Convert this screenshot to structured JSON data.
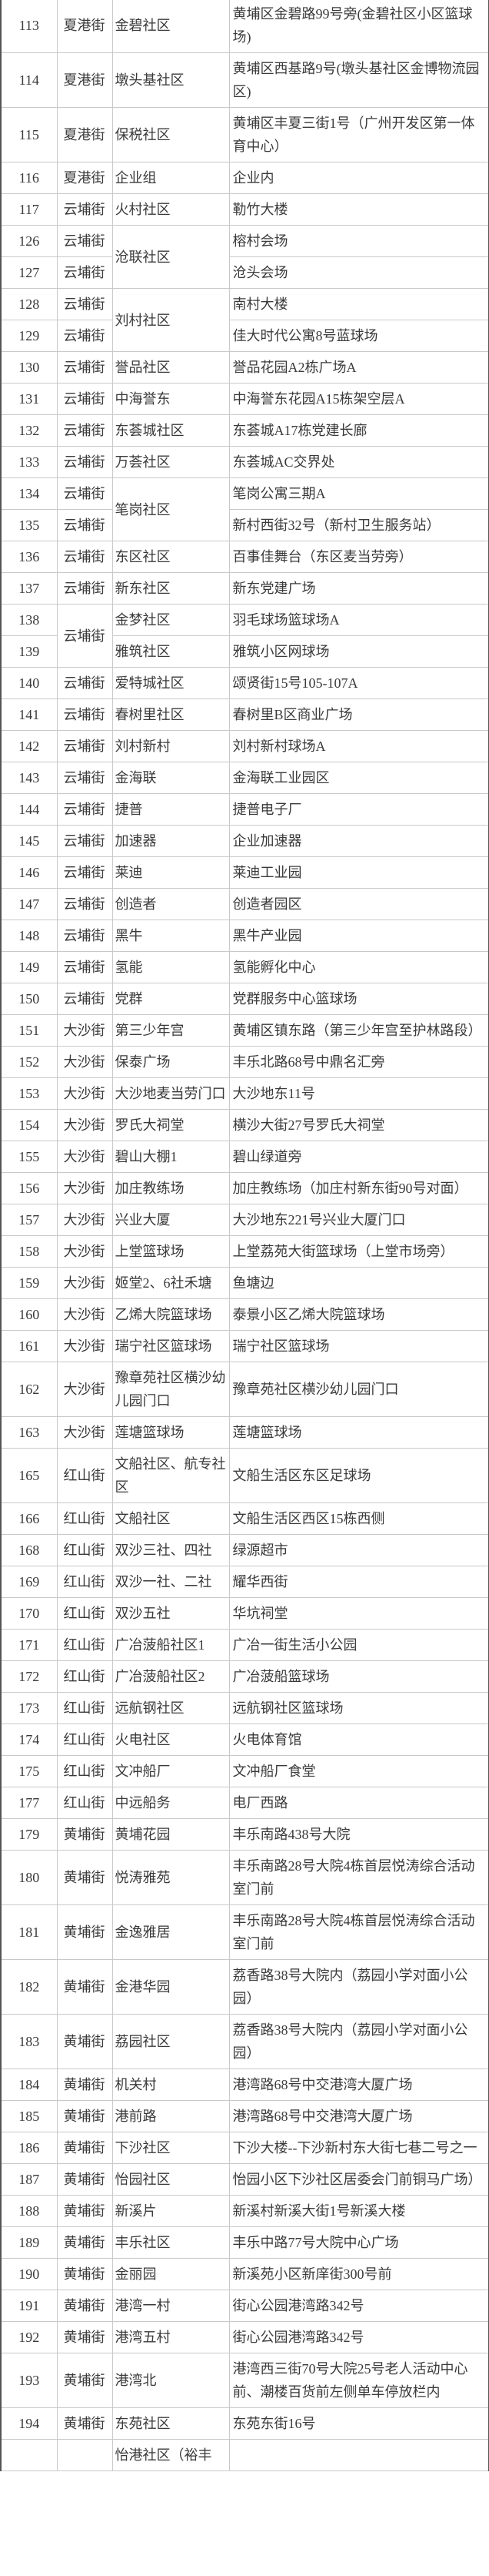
{
  "table": {
    "rows": [
      {
        "no": "113",
        "street": "夏港街",
        "community": "金碧社区",
        "address": "黄埔区金碧路99号旁(金碧社区小区篮球场)"
      },
      {
        "no": "114",
        "street": "夏港街",
        "community": "墩头基社区",
        "address": "黄埔区西基路9号(墩头基社区金博物流园区)"
      },
      {
        "no": "115",
        "street": "夏港街",
        "community": "保税社区",
        "address": "黄埔区丰夏三街1号（广州开发区第一体育中心）"
      },
      {
        "no": "116",
        "street": "夏港街",
        "community": "企业组",
        "address": "企业内"
      },
      {
        "no": "117",
        "street": "云埔街",
        "community": "火村社区",
        "address": "勒竹大楼"
      },
      {
        "no": "126",
        "street": "云埔街",
        "community": "沧联社区",
        "address": "榕村会场"
      },
      {
        "no": "127",
        "street": "云埔街",
        "community": null,
        "address": "沧头会场"
      },
      {
        "no": "128",
        "street": "云埔街",
        "community": "刘村社区",
        "address": "南村大楼"
      },
      {
        "no": "129",
        "street": "云埔街",
        "community": null,
        "address": "佳大时代公寓8号蓝球场"
      },
      {
        "no": "130",
        "street": "云埔街",
        "community": "誉品社区",
        "address": "誉品花园A2栋广场A"
      },
      {
        "no": "131",
        "street": "云埔街",
        "community": "中海誉东",
        "address": "中海誉东花园A15栋架空层A"
      },
      {
        "no": "132",
        "street": "云埔街",
        "community": "东荟城社区",
        "address": "东荟城A17栋党建长廊"
      },
      {
        "no": "133",
        "street": "云埔街",
        "community": "万荟社区",
        "address": "东荟城AC交界处"
      },
      {
        "no": "134",
        "street": "云埔街",
        "community": "笔岗社区",
        "address": "笔岗公寓三期A"
      },
      {
        "no": "135",
        "street": "云埔街",
        "community": null,
        "address": "新村西街32号（新村卫生服务站）"
      },
      {
        "no": "136",
        "street": "云埔街",
        "community": "东区社区",
        "address": "百事佳舞台（东区麦当劳旁）"
      },
      {
        "no": "137",
        "street": "云埔街",
        "community": "新东社区",
        "address": "新东党建广场"
      },
      {
        "no": "138",
        "street": "云埔街",
        "community": "金梦社区",
        "address": "羽毛球场篮球场A"
      },
      {
        "no": "139",
        "street": null,
        "community": "雅筑社区",
        "address": "雅筑小区网球场"
      },
      {
        "no": "140",
        "street": "云埔街",
        "community": "爱特城社区",
        "address": "颂贤街15号105-107A"
      },
      {
        "no": "141",
        "street": "云埔街",
        "community": "春树里社区",
        "address": "春树里B区商业广场"
      },
      {
        "no": "142",
        "street": "云埔街",
        "community": "刘村新村",
        "address": "刘村新村球场A"
      },
      {
        "no": "143",
        "street": "云埔街",
        "community": "金海联",
        "address": "金海联工业园区"
      },
      {
        "no": "144",
        "street": "云埔街",
        "community": "捷普",
        "address": "捷普电子厂"
      },
      {
        "no": "145",
        "street": "云埔街",
        "community": "加速器",
        "address": "企业加速器"
      },
      {
        "no": "146",
        "street": "云埔街",
        "community": "莱迪",
        "address": "莱迪工业园"
      },
      {
        "no": "147",
        "street": "云埔街",
        "community": "创造者",
        "address": "创造者园区"
      },
      {
        "no": "148",
        "street": "云埔街",
        "community": "黑牛",
        "address": "黑牛产业园"
      },
      {
        "no": "149",
        "street": "云埔街",
        "community": "氢能",
        "address": "氢能孵化中心"
      },
      {
        "no": "150",
        "street": "云埔街",
        "community": "党群",
        "address": "党群服务中心篮球场"
      },
      {
        "no": "151",
        "street": "大沙街",
        "community": "第三少年宫",
        "address": "黄埔区镇东路（第三少年宫至护林路段）"
      },
      {
        "no": "152",
        "street": "大沙街",
        "community": "保泰广场",
        "address": "丰乐北路68号中鼎名汇旁"
      },
      {
        "no": "153",
        "street": "大沙街",
        "community": "大沙地麦当劳门口",
        "address": "大沙地东11号"
      },
      {
        "no": "154",
        "street": "大沙街",
        "community": "罗氏大祠堂",
        "address": "横沙大街27号罗氏大祠堂"
      },
      {
        "no": "155",
        "street": "大沙街",
        "community": "碧山大棚1",
        "address": "碧山绿道旁"
      },
      {
        "no": "156",
        "street": "大沙街",
        "community": "加庄教练场",
        "address": "加庄教练场（加庄村新东街90号对面）"
      },
      {
        "no": "157",
        "street": "大沙街",
        "community": "兴业大厦",
        "address": "大沙地东221号兴业大厦门口"
      },
      {
        "no": "158",
        "street": "大沙街",
        "community": "上堂篮球场",
        "address": "上堂荔苑大街篮球场（上堂市场旁）"
      },
      {
        "no": "159",
        "street": "大沙街",
        "community": "姬堂2、6社禾塘",
        "address": "鱼塘边"
      },
      {
        "no": "160",
        "street": "大沙街",
        "community": "乙烯大院篮球场",
        "address": "泰景小区乙烯大院篮球场"
      },
      {
        "no": "161",
        "street": "大沙街",
        "community": "瑞宁社区篮球场",
        "address": "瑞宁社区篮球场"
      },
      {
        "no": "162",
        "street": "大沙街",
        "community": "豫章苑社区横沙幼儿园门口",
        "address": "豫章苑社区横沙幼儿园门口"
      },
      {
        "no": "163",
        "street": "大沙街",
        "community": "莲塘篮球场",
        "address": "莲塘篮球场"
      },
      {
        "no": "165",
        "street": "红山街",
        "community": "文船社区、航专社区",
        "address": "文船生活区东区足球场"
      },
      {
        "no": "166",
        "street": "红山街",
        "community": "文船社区",
        "address": "文船生活区西区15栋西侧"
      },
      {
        "no": "168",
        "street": "红山街",
        "community": "双沙三社、四社",
        "address": "绿源超市"
      },
      {
        "no": "169",
        "street": "红山街",
        "community": "双沙一社、二社",
        "address": "耀华西街"
      },
      {
        "no": "170",
        "street": "红山街",
        "community": "双沙五社",
        "address": "华坑祠堂"
      },
      {
        "no": "171",
        "street": "红山街",
        "community": "广冶菠船社区1",
        "address": "广冶一街生活小公园"
      },
      {
        "no": "172",
        "street": "红山街",
        "community": "广冶菠船社区2",
        "address": "广冶菠船篮球场"
      },
      {
        "no": "173",
        "street": "红山街",
        "community": "远航钢社区",
        "address": "远航钢社区篮球场"
      },
      {
        "no": "174",
        "street": "红山街",
        "community": "火电社区",
        "address": "火电体育馆"
      },
      {
        "no": "175",
        "street": "红山街",
        "community": "文冲船厂",
        "address": "文冲船厂食堂"
      },
      {
        "no": "177",
        "street": "红山街",
        "community": "中远船务",
        "address": "电厂西路"
      },
      {
        "no": "179",
        "street": "黄埔街",
        "community": "黄埔花园",
        "address": "丰乐南路438号大院"
      },
      {
        "no": "180",
        "street": "黄埔街",
        "community": "悦涛雅苑",
        "address": "丰乐南路28号大院4栋首层悦涛综合活动室门前"
      },
      {
        "no": "181",
        "street": "黄埔街",
        "community": "金逸雅居",
        "address": "丰乐南路28号大院4栋首层悦涛综合活动室门前"
      },
      {
        "no": "182",
        "street": "黄埔街",
        "community": "金港华园",
        "address": "荔香路38号大院内（荔园小学对面小公园）"
      },
      {
        "no": "183",
        "street": "黄埔街",
        "community": "荔园社区",
        "address": "荔香路38号大院内（荔园小学对面小公园）"
      },
      {
        "no": "184",
        "street": "黄埔街",
        "community": "机关村",
        "address": "港湾路68号中交港湾大厦广场"
      },
      {
        "no": "185",
        "street": "黄埔街",
        "community": "港前路",
        "address": "港湾路68号中交港湾大厦广场"
      },
      {
        "no": "186",
        "street": "黄埔街",
        "community": "下沙社区",
        "address": "下沙大楼--下沙新村东大街七巷二号之一"
      },
      {
        "no": "187",
        "street": "黄埔街",
        "community": "怡园社区",
        "address": "怡园小区下沙社区居委会门前铜马广场）"
      },
      {
        "no": "188",
        "street": "黄埔街",
        "community": "新溪片",
        "address": "新溪村新溪大街1号新溪大楼"
      },
      {
        "no": "189",
        "street": "黄埔街",
        "community": "丰乐社区",
        "address": "丰乐中路77号大院中心广场"
      },
      {
        "no": "190",
        "street": "黄埔街",
        "community": "金丽园",
        "address": "新溪苑小区新庠街300号前"
      },
      {
        "no": "191",
        "street": "黄埔街",
        "community": "港湾一村",
        "address": "街心公园港湾路342号"
      },
      {
        "no": "192",
        "street": "黄埔街",
        "community": "港湾五村",
        "address": "街心公园港湾路342号"
      },
      {
        "no": "193",
        "street": "黄埔街",
        "community": "港湾北",
        "address": "港湾西三街70号大院25号老人活动中心前、潮楼百货前左侧单车停放栏内"
      },
      {
        "no": "194",
        "street": "黄埔街",
        "community": "东苑社区",
        "address": "东苑东街16号"
      },
      {
        "no": "",
        "street": "",
        "community": "怡港社区（裕丰",
        "address": ""
      }
    ]
  }
}
